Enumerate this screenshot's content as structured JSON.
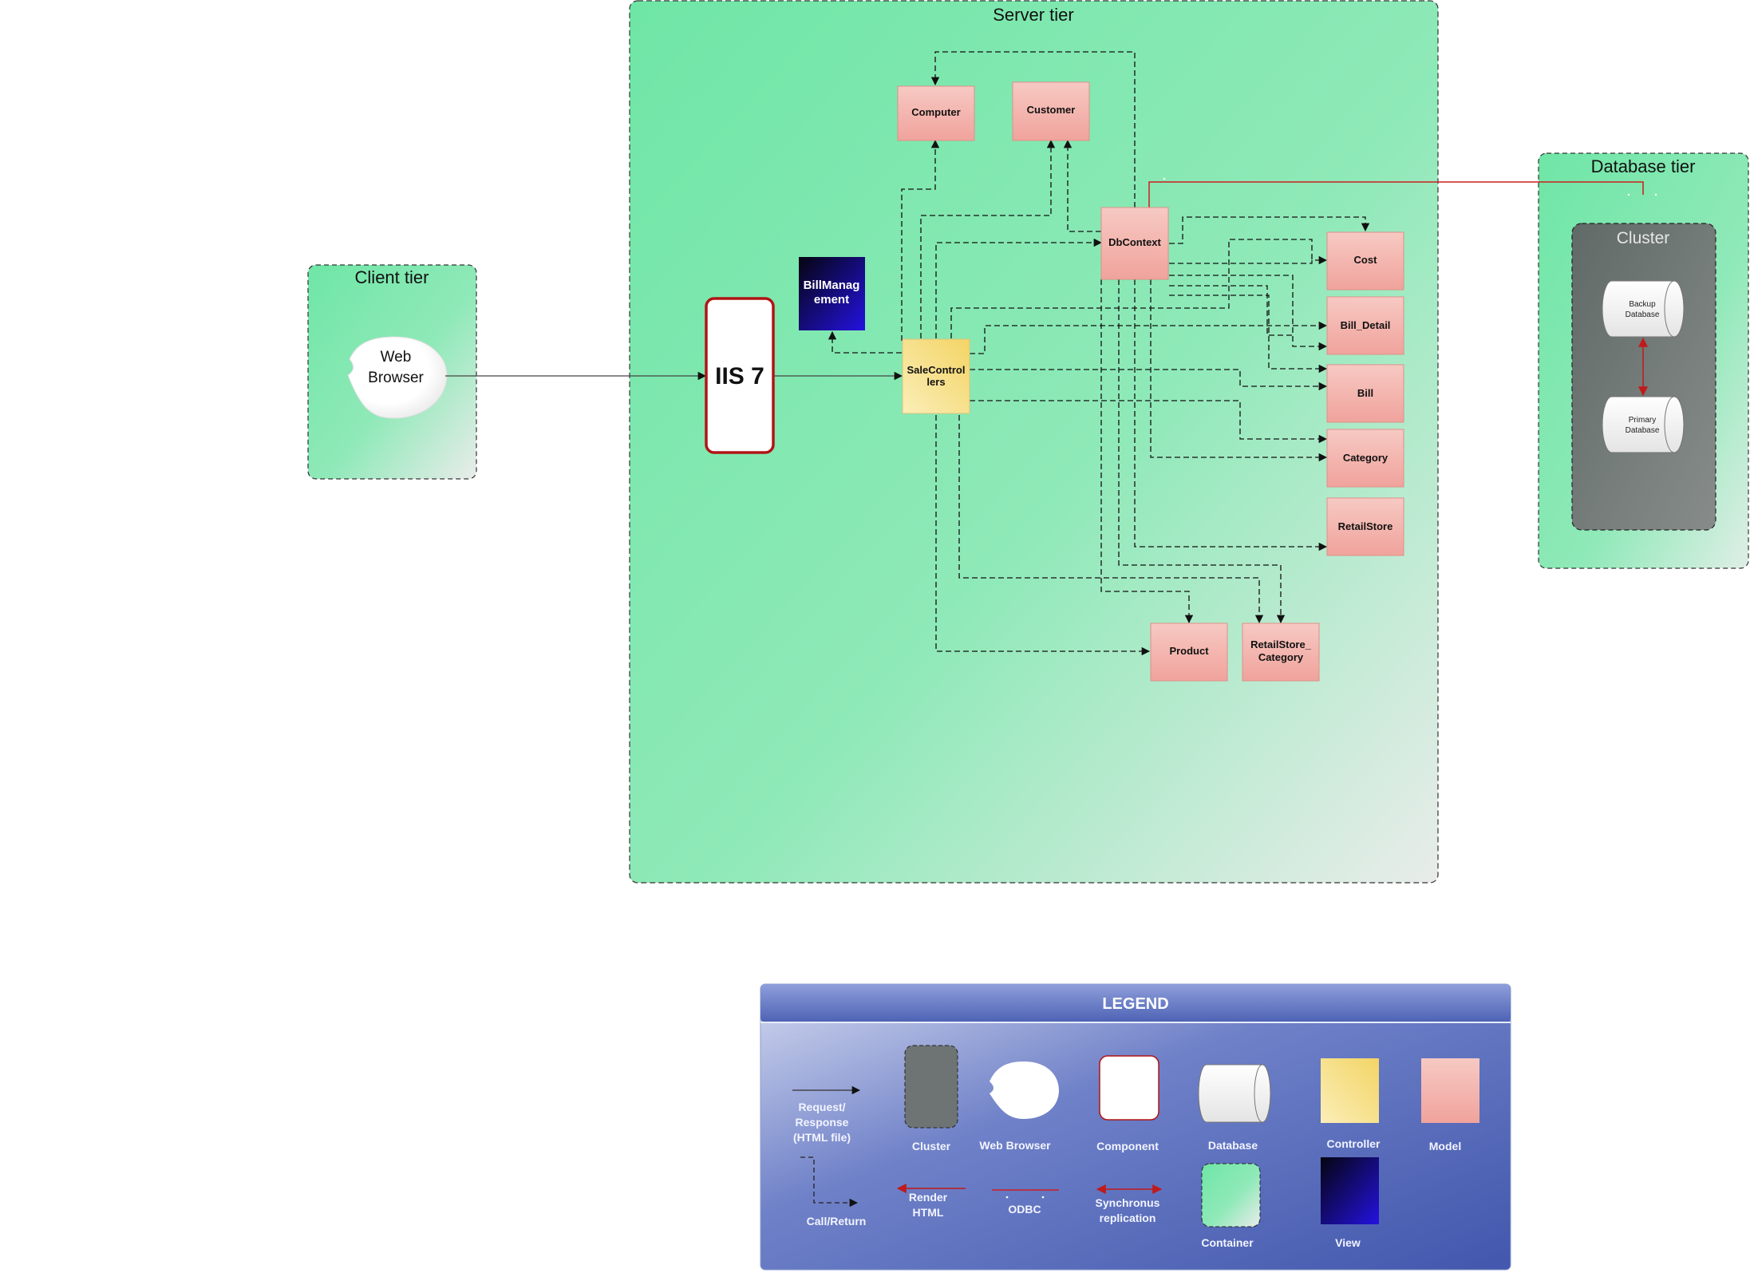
{
  "tiers": {
    "client": "Client tier",
    "server": "Server tier",
    "database": "Database tier",
    "cluster": "Cluster"
  },
  "nodes": {
    "web_browser": [
      "Web",
      "Browser"
    ],
    "iis": "IIS 7",
    "bill_management": [
      "BillManag",
      "ement"
    ],
    "sale_controllers": [
      "SaleControl",
      "lers"
    ],
    "db_context": "DbContext",
    "computer": "Computer",
    "customer": "Customer",
    "cost": "Cost",
    "bill_detail": "Bill_Detail",
    "bill": "Bill",
    "category": "Category",
    "retail_store": "RetailStore",
    "product": "Product",
    "retail_store_category": [
      "RetailStore_",
      "Category"
    ],
    "backup_db": [
      "Backup",
      "Database"
    ],
    "primary_db": [
      "Primary",
      "Database"
    ]
  },
  "legend": {
    "title": "LEGEND",
    "request_response": [
      "Request/",
      "Response",
      "(HTML file)"
    ],
    "cluster": "Cluster",
    "web_browser": "Web Browser",
    "component": "Component",
    "database": "Database",
    "controller": "Controller",
    "model": "Model",
    "call_return": "Call/Return",
    "render_html": [
      "Render",
      "HTML"
    ],
    "odbc": "ODBC",
    "sync_replication": [
      "Synchronus",
      "replication"
    ],
    "container": "Container",
    "view": "View"
  },
  "colors": {
    "container_green": "#72e8a8",
    "model_pink": "#f4b0aa",
    "controller_yellow": "#f7df86",
    "view_blue": "#1a14c8",
    "cluster_gray": "#6e7474",
    "legend_blue": "#4a5fb0",
    "odbc_red": "#cc1f1f",
    "iis_border": "#b01515"
  }
}
